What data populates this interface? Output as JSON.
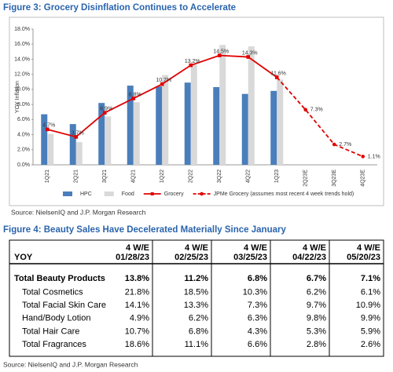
{
  "figure3": {
    "title": "Figure 3: Grocery Disinflation Continues to Accelerate",
    "source": "Source: NielsenIQ and J.P. Morgan Research"
  },
  "chart_data": {
    "type": "bar-line",
    "y_label": "YOY Inflation",
    "categories": [
      "1Q21",
      "2Q21",
      "3Q21",
      "4Q21",
      "1Q22",
      "2Q22",
      "3Q22",
      "4Q22",
      "1Q23",
      "2Q23E",
      "3Q23E",
      "4Q23E"
    ],
    "series": [
      {
        "name": "HPC",
        "kind": "bar",
        "color": "#4a7ebb",
        "values": [
          6.7,
          5.4,
          8.2,
          10.5,
          10.4,
          10.9,
          10.3,
          9.4,
          9.8,
          null,
          null,
          null
        ]
      },
      {
        "name": "Food",
        "kind": "bar",
        "color": "#d9d9d9",
        "values": [
          4.1,
          3.0,
          6.4,
          8.3,
          11.9,
          13.3,
          15.9,
          15.7,
          11.3,
          null,
          null,
          null
        ]
      },
      {
        "name": "Grocery",
        "kind": "line",
        "color": "#e00000",
        "values": [
          4.7,
          3.7,
          6.9,
          8.8,
          10.7,
          13.2,
          14.5,
          14.3,
          11.6,
          null,
          null,
          null
        ],
        "value_labels": [
          "4.7%",
          "3.7%",
          "6.9%",
          "8.8%",
          "10.7%",
          "13.2%",
          "14.5%",
          "14.3%",
          "11.6%",
          null,
          null,
          null
        ]
      },
      {
        "name": "JPMe Grocery (assumes most recent 4 week trends hold)",
        "kind": "dashed",
        "color": "#e00000",
        "values": [
          null,
          null,
          null,
          null,
          null,
          null,
          null,
          null,
          11.6,
          7.3,
          2.7,
          1.1
        ],
        "value_labels": [
          null,
          null,
          null,
          null,
          null,
          null,
          null,
          null,
          null,
          "7.3%",
          "2.7%",
          "1.1%"
        ]
      }
    ],
    "ylim": [
      0,
      18
    ],
    "yticks": [
      {
        "value": 0,
        "label": "0.0%"
      },
      {
        "value": 2,
        "label": "2.0%"
      },
      {
        "value": 4,
        "label": "4.0%"
      },
      {
        "value": 6,
        "label": "6.0%"
      },
      {
        "value": 8,
        "label": "8.0%"
      },
      {
        "value": 10,
        "label": "10.0%"
      },
      {
        "value": 12,
        "label": "12.0%"
      },
      {
        "value": 14,
        "label": "14.0%"
      },
      {
        "value": 16,
        "label": "16.0%"
      },
      {
        "value": 18,
        "label": "18.0%"
      }
    ],
    "grid": false
  },
  "figure4": {
    "title": "Figure 4: Beauty Sales Have Decelerated Materially Since January",
    "source": "Source: NielsenIQ and J.P. Morgan Research"
  },
  "table": {
    "corner": "YOY",
    "columns": [
      [
        "4 W/E",
        "01/28/23"
      ],
      [
        "4 W/E",
        "02/25/23"
      ],
      [
        "4 W/E",
        "03/25/23"
      ],
      [
        "4 W/E",
        "04/22/23"
      ],
      [
        "4 W/E",
        "05/20/23"
      ]
    ],
    "rows": [
      [
        "Total Beauty Products",
        "13.8%",
        "11.2%",
        "6.8%",
        "6.7%",
        "7.1%"
      ],
      [
        "Total Cosmetics",
        "21.8%",
        "18.5%",
        "10.3%",
        "6.2%",
        "6.1%"
      ],
      [
        "Total Facial Skin Care",
        "14.1%",
        "13.3%",
        "7.3%",
        "9.7%",
        "10.9%"
      ],
      [
        "Hand/Body Lotion",
        "4.9%",
        "6.2%",
        "6.3%",
        "9.8%",
        "9.9%"
      ],
      [
        "Total Hair Care",
        "10.7%",
        "6.8%",
        "4.3%",
        "5.3%",
        "5.9%"
      ],
      [
        "Total Fragrances",
        "18.6%",
        "11.1%",
        "6.6%",
        "2.8%",
        "2.6%"
      ]
    ]
  }
}
